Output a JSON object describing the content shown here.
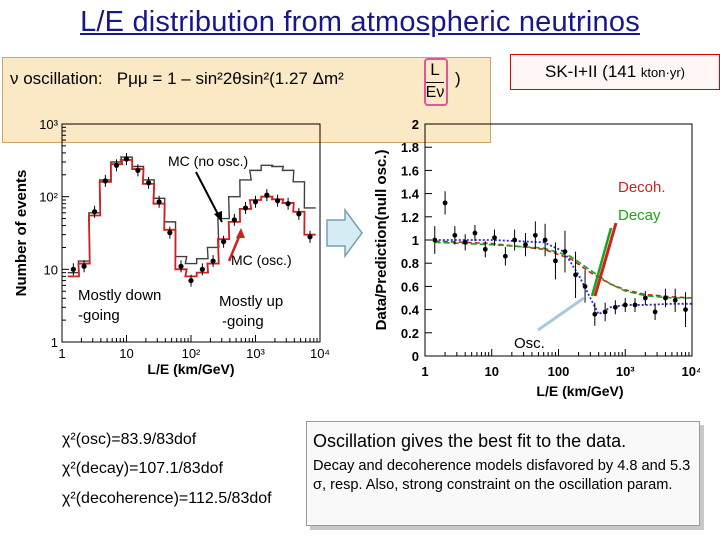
{
  "title": "L/E distribution from atmospheric neutrinos",
  "formula": {
    "prefix": "ν oscillation:",
    "expr": "Pμμ = 1 – sin²2θsin²(1.27 Δm²",
    "frac_num": "L",
    "frac_den": "Eν",
    "close": ")"
  },
  "exposure": {
    "main": "SK-I+II (141",
    "unit": "kton·yr)"
  },
  "colors": {
    "title": "#17178a",
    "mc_osc": "#d02020",
    "mc_no_osc": "#404040",
    "data": "#000000",
    "decay": "#1aa51a",
    "decoherence": "#d02020",
    "osc_dotted": "#2a2ad0",
    "formula_bg": "#fbe9c6"
  },
  "chart_data": [
    {
      "type": "line",
      "title": "",
      "xlabel": "L/E (km/GeV)",
      "ylabel": "Number of events",
      "xscale": "log",
      "yscale": "log",
      "xlim": [
        1,
        10000
      ],
      "ylim": [
        1,
        1000
      ],
      "xticks": [
        "1",
        "10",
        "10²",
        "10³",
        "10⁴"
      ],
      "yticks": [
        "1",
        "10",
        "10²",
        "10³"
      ],
      "series": [
        {
          "name": "MC (no osc.)",
          "x": [
            1.5,
            2.2,
            3.2,
            4.7,
            7,
            10,
            15,
            22,
            32,
            47,
            70,
            100,
            150,
            220,
            320,
            470,
            700,
            1000,
            1500,
            2200,
            3200,
            4700,
            7000
          ],
          "y": [
            9,
            13,
            60,
            170,
            300,
            350,
            260,
            170,
            95,
            45,
            15,
            12,
            14,
            20,
            50,
            100,
            170,
            230,
            270,
            260,
            230,
            160,
            70
          ]
        },
        {
          "name": "MC (osc.)",
          "x": [
            1.5,
            2.2,
            3.2,
            4.7,
            7,
            10,
            15,
            22,
            32,
            47,
            70,
            100,
            150,
            220,
            320,
            470,
            700,
            1000,
            1500,
            2200,
            3200,
            4700,
            7000
          ],
          "y": [
            8,
            12,
            55,
            160,
            280,
            320,
            240,
            150,
            80,
            35,
            10,
            8,
            9,
            12,
            26,
            45,
            68,
            90,
            100,
            92,
            82,
            62,
            30
          ]
        },
        {
          "name": "Data",
          "x": [
            1.5,
            2.2,
            3.2,
            4.7,
            7,
            10,
            15,
            22,
            32,
            47,
            70,
            100,
            150,
            220,
            320,
            470,
            700,
            1000,
            1500,
            2200,
            3200,
            4700,
            7000
          ],
          "y": [
            10,
            11,
            62,
            165,
            270,
            330,
            230,
            155,
            85,
            32,
            11,
            7,
            10,
            13,
            24,
            48,
            70,
            85,
            105,
            88,
            80,
            58,
            28
          ]
        }
      ],
      "annotations": {
        "no_osc": "MC (no osc.)",
        "osc": "MC (osc.)",
        "down": "Mostly down -going",
        "up": "Mostly up -going"
      }
    },
    {
      "type": "line",
      "title": "",
      "xlabel": "L/E  (km/GeV)",
      "ylabel": "Data/Prediction(null osc.)",
      "xscale": "log",
      "xlim": [
        1,
        10000
      ],
      "ylim": [
        0,
        2
      ],
      "xticks": [
        "1",
        "10",
        "100",
        "10³",
        "10⁴"
      ],
      "yticks": [
        "0",
        "0.2",
        "0.4",
        "0.6",
        "0.8",
        "1",
        "1.2",
        "1.4",
        "1.6",
        "1.8",
        "2"
      ],
      "series": [
        {
          "name": "Data",
          "x": [
            1.4,
            2,
            2.8,
            4,
            5.6,
            8,
            11,
            16,
            22,
            32,
            45,
            63,
            90,
            125,
            180,
            250,
            350,
            500,
            710,
            1000,
            1400,
            2000,
            2800,
            4000,
            5600,
            8000
          ],
          "y": [
            1.0,
            1.32,
            1.04,
            0.98,
            1.06,
            0.92,
            1.02,
            0.86,
            1.0,
            0.96,
            1.04,
            1.0,
            0.82,
            0.9,
            0.7,
            0.6,
            0.36,
            0.38,
            0.42,
            0.44,
            0.44,
            0.5,
            0.38,
            0.5,
            0.48,
            0.4
          ],
          "err": [
            0.12,
            0.1,
            0.08,
            0.07,
            0.07,
            0.07,
            0.07,
            0.08,
            0.09,
            0.1,
            0.12,
            0.14,
            0.16,
            0.18,
            0.2,
            0.14,
            0.1,
            0.08,
            0.06,
            0.06,
            0.06,
            0.06,
            0.07,
            0.08,
            0.1,
            0.15
          ]
        },
        {
          "name": "Osc.",
          "x": [
            1.4,
            10,
            60,
            120,
            200,
            300,
            400,
            600,
            1000,
            2000,
            5000,
            10000
          ],
          "y": [
            1.0,
            1.0,
            0.98,
            0.9,
            0.7,
            0.5,
            0.36,
            0.42,
            0.44,
            0.44,
            0.45,
            0.45
          ]
        },
        {
          "name": "Decay",
          "x": [
            1.4,
            10,
            60,
            150,
            300,
            600,
            1000,
            2000,
            5000,
            10000
          ],
          "y": [
            0.98,
            0.96,
            0.93,
            0.86,
            0.74,
            0.62,
            0.56,
            0.52,
            0.5,
            0.5
          ]
        },
        {
          "name": "Decoh.",
          "x": [
            1.4,
            10,
            60,
            150,
            300,
            600,
            1000,
            2000,
            5000,
            10000
          ],
          "y": [
            0.99,
            0.97,
            0.92,
            0.84,
            0.72,
            0.62,
            0.57,
            0.53,
            0.51,
            0.5
          ]
        }
      ],
      "annotations": {
        "decoh": "Decoh.",
        "decay": "Decay",
        "osc": "Osc."
      }
    }
  ],
  "chi2": [
    "χ²(osc)=83.9/83dof",
    "χ²(decay)=107.1/83dof",
    "χ²(decoherence)=112.5/83dof"
  ],
  "notes": {
    "headline": "Oscillation gives the best fit to the data.",
    "body": "Decay and decoherence models disfavored by 4.8 and 5.3 σ, resp. Also, strong constraint on the oscillation param."
  }
}
